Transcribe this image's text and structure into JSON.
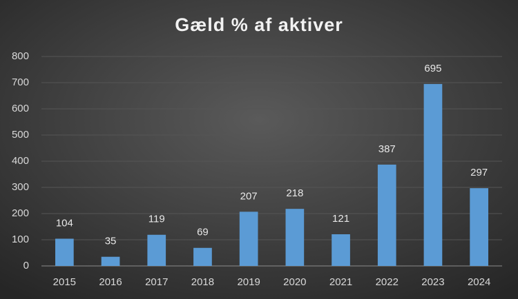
{
  "chart_data": {
    "type": "bar",
    "title": "Gæld % af aktiver",
    "categories": [
      "2015",
      "2016",
      "2017",
      "2018",
      "2019",
      "2020",
      "2021",
      "2022",
      "2023",
      "2024"
    ],
    "values": [
      104,
      35,
      119,
      69,
      207,
      218,
      121,
      387,
      695,
      297
    ],
    "color": "#5b9bd5",
    "ylim": [
      0,
      800
    ],
    "yticks": [
      0,
      100,
      200,
      300,
      400,
      500,
      600,
      700,
      800
    ],
    "grid": true
  }
}
